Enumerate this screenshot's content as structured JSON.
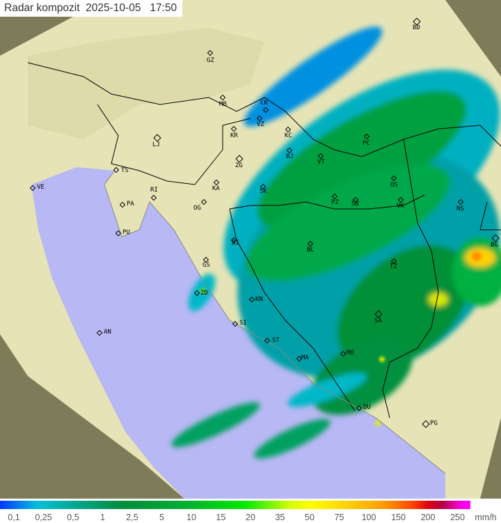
{
  "header": {
    "title": "Radar kompozit",
    "date": "2025-10-05",
    "time": "17:50"
  },
  "colors": {
    "sea": "#b8b8f4",
    "land": "#e6e4b6",
    "outside_coverage": "#7e7c58",
    "rain_light": "#00b8c8",
    "rain_moderate": "#009040",
    "rain_heavy": "#ffd000"
  },
  "cities": [
    "GZ",
    "MB",
    "CK",
    "VZ",
    "KC",
    "KR",
    "PC",
    "LJ",
    "BJ",
    "ZG",
    "VT",
    "TS",
    "KA",
    "VE",
    "SK",
    "OS",
    "RI",
    "PA",
    "OG",
    "PZ",
    "SB",
    "VK",
    "NS",
    "PU",
    "BI",
    "BL",
    "BG",
    "GS",
    "TZ",
    "ZD",
    "KN",
    "SA",
    "SI",
    "AN",
    "ST",
    "MA",
    "MO",
    "DU",
    "PG",
    "BD"
  ],
  "legend": {
    "ticks": [
      "0,1",
      "0,25",
      "0,5",
      "1",
      "2,5",
      "5",
      "10",
      "15",
      "20",
      "35",
      "50",
      "75",
      "100",
      "150",
      "200",
      "250"
    ],
    "unit": "mm/h"
  }
}
